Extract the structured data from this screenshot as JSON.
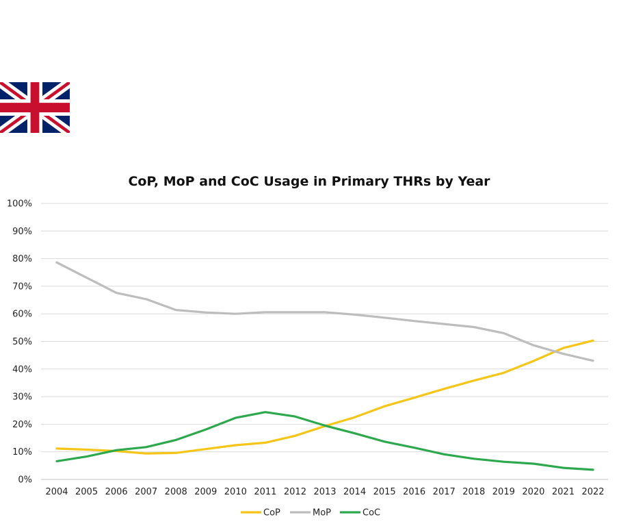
{
  "flag": {
    "icon": "union-jack-flag"
  },
  "chart_data": {
    "type": "line",
    "title": "CoP, MoP and CoC Usage in Primary THRs by Year",
    "xlabel": "",
    "ylabel": "",
    "x": [
      "2004",
      "2005",
      "2006",
      "2007",
      "2008",
      "2009",
      "2010",
      "2011",
      "2012",
      "2013",
      "2014",
      "2015",
      "2016",
      "2017",
      "2018",
      "2019",
      "2020",
      "2021",
      "2022"
    ],
    "ylim": [
      0,
      100
    ],
    "yticks": [
      "0%",
      "10%",
      "20%",
      "30%",
      "40%",
      "50%",
      "60%",
      "70%",
      "80%",
      "90%",
      "100%"
    ],
    "grid": true,
    "legend": "bottom-center",
    "series": [
      {
        "name": "CoP",
        "color": "#F5C518",
        "values": [
          11.2,
          10.8,
          10.3,
          9.4,
          9.6,
          11.0,
          12.4,
          13.3,
          15.8,
          19.3,
          22.5,
          26.5,
          29.6,
          32.8,
          35.8,
          38.6,
          42.9,
          47.6,
          50.3
        ]
      },
      {
        "name": "MoP",
        "color": "#BDBDBD",
        "values": [
          78.6,
          73.1,
          67.6,
          65.3,
          61.4,
          60.5,
          60.0,
          60.6,
          60.6,
          60.6,
          59.7,
          58.6,
          57.4,
          56.3,
          55.2,
          53.0,
          48.6,
          45.5,
          43.0
        ]
      },
      {
        "name": "CoC",
        "color": "#2DA84C",
        "values": [
          6.6,
          8.3,
          10.6,
          11.7,
          14.3,
          18.1,
          22.3,
          24.4,
          22.8,
          19.5,
          16.7,
          13.7,
          11.5,
          9.1,
          7.5,
          6.4,
          5.7,
          4.2,
          3.5
        ]
      }
    ]
  }
}
